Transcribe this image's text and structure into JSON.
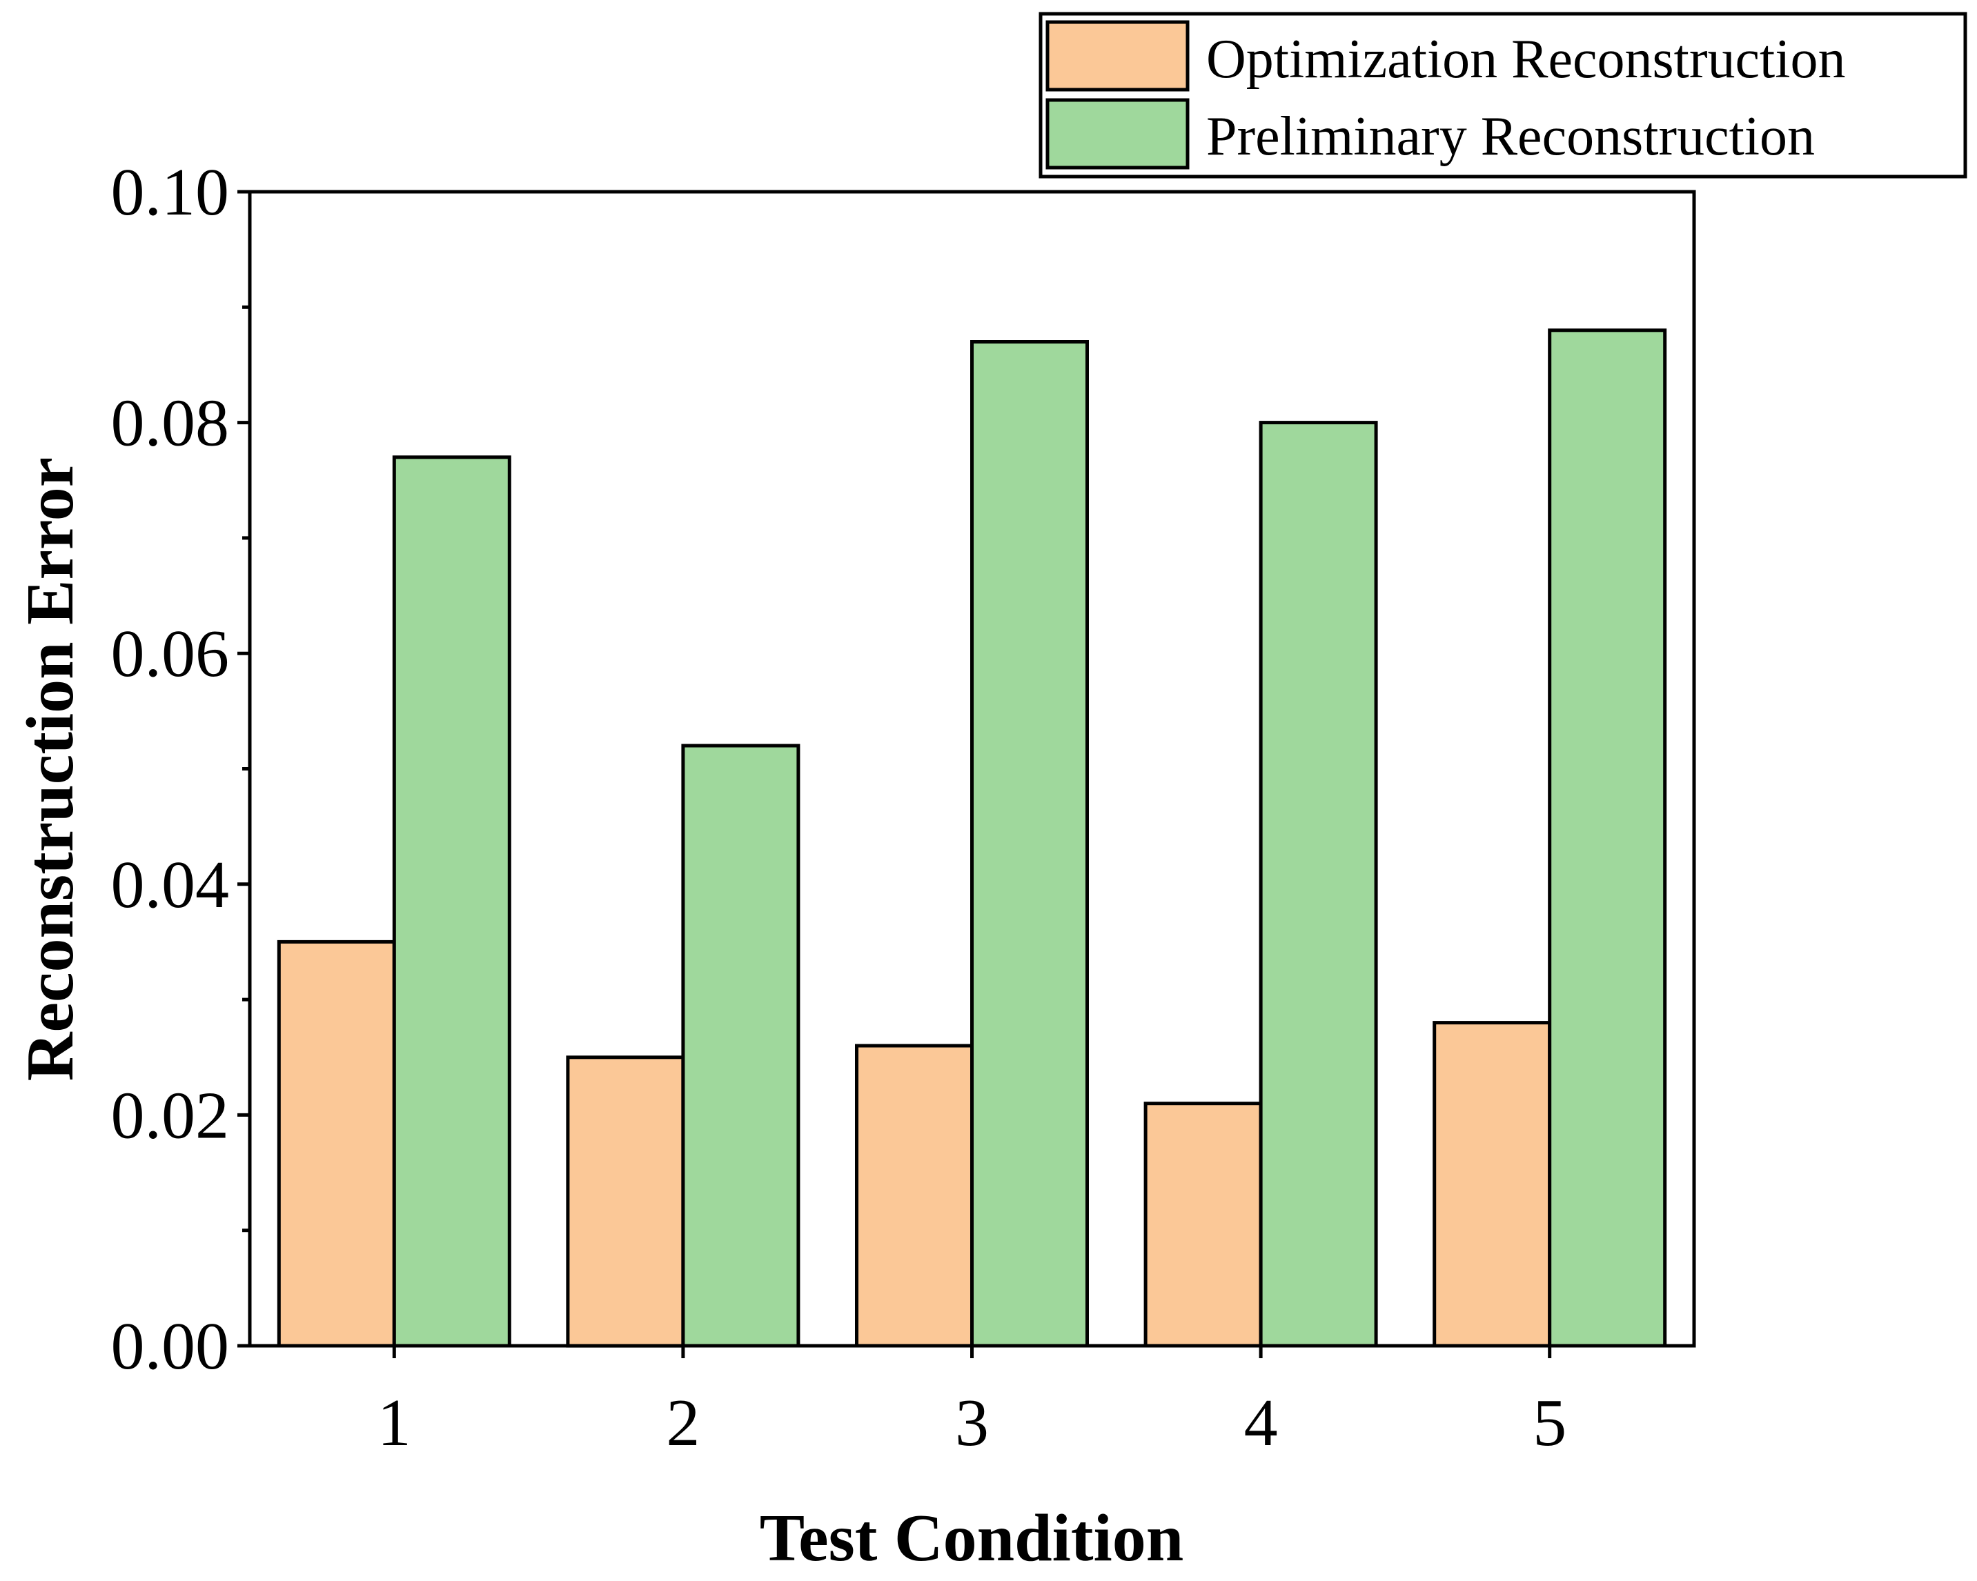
{
  "chart_data": {
    "type": "bar",
    "title": "",
    "xlabel": "Test Condition",
    "ylabel": "Reconstruction Error",
    "categories": [
      "1",
      "2",
      "3",
      "4",
      "5"
    ],
    "series": [
      {
        "name": "Optimization Reconstruction",
        "color": "#FBC897",
        "values": [
          0.035,
          0.025,
          0.026,
          0.021,
          0.028
        ]
      },
      {
        "name": "Preliminary Reconstruction",
        "color": "#9FD89C",
        "values": [
          0.077,
          0.052,
          0.087,
          0.08,
          0.088
        ]
      }
    ],
    "ylim": [
      0,
      0.1
    ],
    "yticks": [
      "0.00",
      "0.02",
      "0.04",
      "0.06",
      "0.08",
      "0.10"
    ],
    "grid": false,
    "legend_position": "top-right"
  }
}
